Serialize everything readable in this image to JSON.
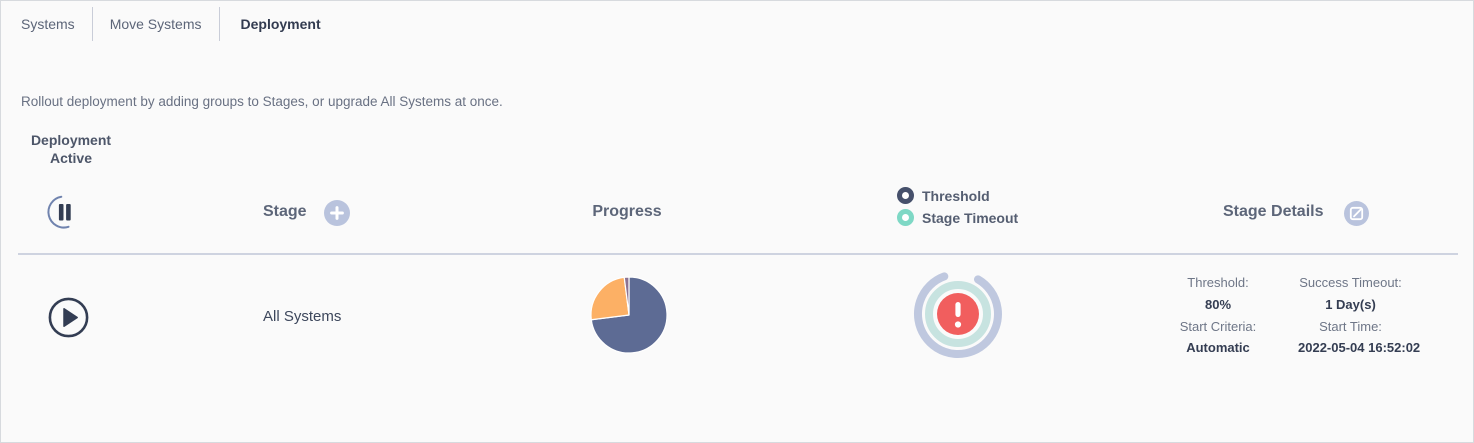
{
  "tabs": [
    {
      "label": "Systems",
      "active": false
    },
    {
      "label": "Move Systems",
      "active": false
    },
    {
      "label": "Deployment",
      "active": true
    }
  ],
  "description": "Rollout deployment by adding groups to Stages, or upgrade All Systems at once.",
  "deployment_status": {
    "line1": "Deployment",
    "line2": "Active"
  },
  "columns": {
    "stage": "Stage",
    "progress": "Progress",
    "stage_details": "Stage Details"
  },
  "legend": [
    {
      "label": "Threshold",
      "color": "#46506b"
    },
    {
      "label": "Stage Timeout",
      "color": "#7ed8c5"
    }
  ],
  "row": {
    "stage_name": "All Systems",
    "details": [
      {
        "label": "Threshold:",
        "value": "80%"
      },
      {
        "label": "Success Timeout:",
        "value": "1 Day(s)"
      },
      {
        "label": "Start Criteria:",
        "value": "Automatic"
      },
      {
        "label": "Start Time:",
        "value": "2022-05-04 16:52:02"
      }
    ]
  },
  "icons": {
    "pause": "pause-icon",
    "add_stage": "plus-icon",
    "edit_stage_details": "edit-square-icon",
    "play": "play-icon",
    "alert": "exclamation-circle-icon"
  },
  "colors": {
    "accent_circle_bg": "#b9c3dd",
    "alert_red": "#f15e5e",
    "alert_outer_ring": "#bfc8df",
    "alert_inner_ring": "#c7e3e0",
    "play_pause": "#333d53",
    "pause_arc": "#7083ae"
  },
  "chart_data": {
    "type": "pie",
    "labels": [
      "segment-blue",
      "segment-orange",
      "segment-purple"
    ],
    "values": [
      73,
      25,
      2
    ],
    "colors": [
      "#5d6b94",
      "#fcb065",
      "#8d7391"
    ],
    "start_angle": 0,
    "direction": "clockwise",
    "legend_position": "none",
    "title": ""
  }
}
